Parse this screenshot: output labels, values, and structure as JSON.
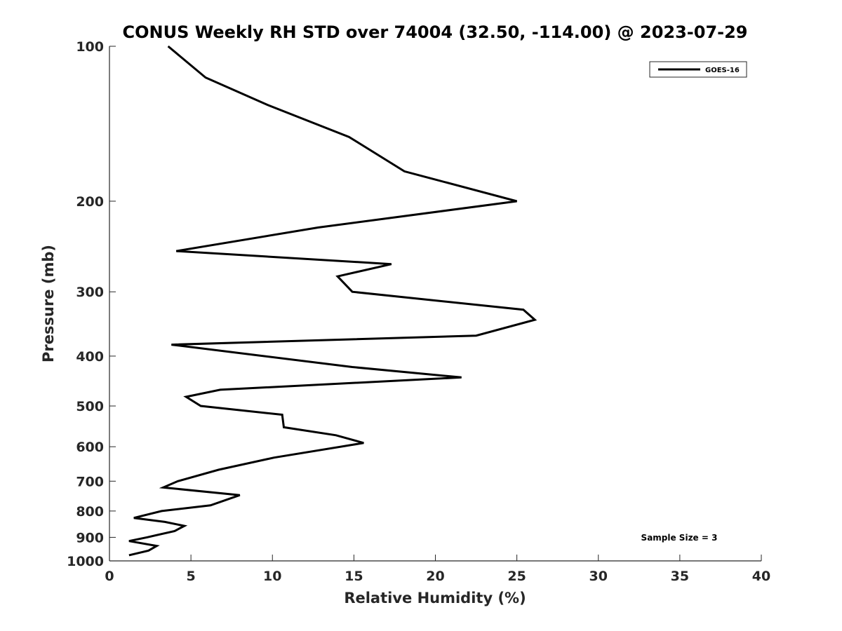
{
  "chart_data": {
    "type": "line",
    "title": "CONUS Weekly RH STD over 74004 (32.50, -114.00) @ 2023-07-29",
    "xlabel": "Relative Humidity (%)",
    "ylabel": "Pressure (mb)",
    "xlim": [
      0,
      40
    ],
    "ylim": [
      1000,
      100
    ],
    "y_scale": "log",
    "y_reversed": true,
    "x_ticks": [
      0,
      5,
      10,
      15,
      20,
      25,
      30,
      35,
      40
    ],
    "y_ticks": [
      100,
      200,
      300,
      400,
      500,
      600,
      700,
      800,
      900,
      1000
    ],
    "grid": false,
    "legend": "top-right",
    "annotation": "Sample Size = 3",
    "series": [
      {
        "name": "GOES-16",
        "color": "#000000",
        "x": [
          3.6,
          5.9,
          9.7,
          14.7,
          18.1,
          25.0,
          12.8,
          4.1,
          17.3,
          14.0,
          14.9,
          25.4,
          26.1,
          22.5,
          3.8,
          14.9,
          21.6,
          6.8,
          4.7,
          5.6,
          10.6,
          10.7,
          13.9,
          15.6,
          10.1,
          6.7,
          4.2,
          3.3,
          8.0,
          6.2,
          3.2,
          1.5,
          3.4,
          4.6,
          4.0,
          2.3,
          1.2,
          2.9,
          2.4,
          1.2
        ],
        "y": [
          100,
          115,
          130,
          150,
          175,
          200,
          225,
          250,
          265,
          280,
          300,
          325,
          340,
          365,
          380,
          420,
          440,
          465,
          480,
          500,
          520,
          550,
          570,
          590,
          630,
          665,
          700,
          720,
          745,
          780,
          800,
          825,
          840,
          855,
          875,
          900,
          915,
          935,
          955,
          975
        ]
      }
    ]
  }
}
